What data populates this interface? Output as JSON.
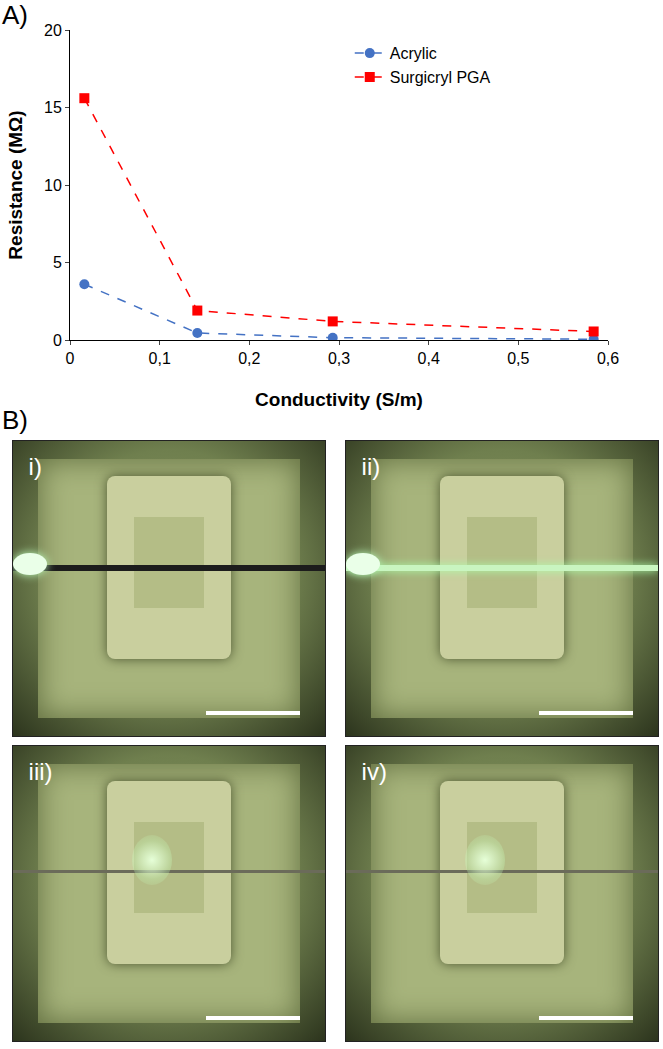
{
  "chart_data": {
    "type": "scatter",
    "x_label": "Conductivity (S/m)",
    "y_label": "Resistance (MΩ)",
    "xlim": [
      0,
      0.6
    ],
    "xticks": [
      0,
      {
        "value": 0.1,
        "label": "0,1"
      },
      {
        "value": 0.2,
        "label": "0,2"
      },
      {
        "value": 0.3,
        "label": "0,3"
      },
      {
        "value": 0.4,
        "label": "0,4"
      },
      {
        "value": 0.5,
        "label": "0,5"
      },
      {
        "value": 0.6,
        "label": "0,6"
      }
    ],
    "ylim": [
      0,
      20
    ],
    "yticks": [
      0,
      5,
      10,
      15,
      20
    ],
    "grid": false,
    "legend": "upper right",
    "series": [
      {
        "name": "Acrylic",
        "color": "#4472c4",
        "marker": "circle",
        "line_style": "dashed",
        "x": [
          0.016,
          0.142,
          0.293,
          0.584
        ],
        "values": [
          3.6,
          0.45,
          0.15,
          0.05
        ]
      },
      {
        "name": "Surgicryl PGA",
        "color": "#ff0000",
        "marker": "square",
        "line_style": "dashed",
        "x": [
          0.016,
          0.142,
          0.293,
          0.584
        ],
        "values": [
          15.6,
          1.9,
          1.2,
          0.55
        ]
      }
    ]
  },
  "panel_a": {
    "label": "A)"
  },
  "panel_b": {
    "label": "B)",
    "photos": [
      "i)",
      "ii)",
      "iii)",
      "iv)"
    ]
  }
}
